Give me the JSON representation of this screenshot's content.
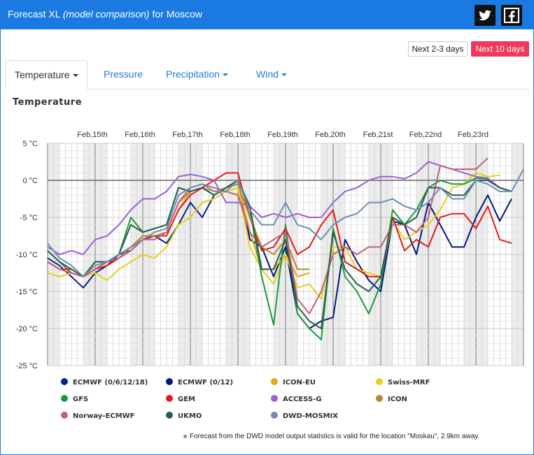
{
  "header": {
    "title_prefix": "Forecast XL",
    "title_italic": "(model comparison)",
    "title_suffix": "for Moscow",
    "twitter_icon": "twitter-icon",
    "facebook_icon": "facebook-icon"
  },
  "range_buttons": {
    "next_2_3": "Next 2-3 days",
    "next_10": "Next 10 days"
  },
  "tabs": {
    "temperature": "Temperature",
    "pressure": "Pressure",
    "precipitation": "Precipitation",
    "wind": "Wind"
  },
  "section_title": "Temperature",
  "footnote": "Forecast from the DWD model output statistics is valid for the location \"Moskau\", 2.9km away.",
  "colors": {
    "header_bg": "#1a7ae2",
    "active_button": "#f0385a",
    "link": "#2a7ad3"
  },
  "chart_data": {
    "type": "line",
    "title": "Temperature",
    "x_unit": "days",
    "x_tick_labels": [
      "Feb,15th",
      "Feb,16th",
      "Feb,17th",
      "Feb,18th",
      "Feb,19th",
      "Feb,20th",
      "Feb,21st",
      "Feb,22nd",
      "Feb,23rd"
    ],
    "x_range_days": [
      14.0,
      24.0
    ],
    "y_unit": "°C",
    "ylim": [
      -25,
      5
    ],
    "y_ticks": [
      5,
      0,
      -5,
      -10,
      -15,
      -20,
      -25
    ],
    "y_tick_labels": [
      "5 °C",
      "0 °C",
      "-5 °C",
      "-10 °C",
      "-15 °C",
      "-20 °C",
      "-25 °C"
    ],
    "grid": true,
    "night_shading": true,
    "legend_position": "bottom",
    "series": [
      {
        "name": "ECMWF (0/6/12/18)",
        "color": "#0b1f8f",
        "x": [
          14.0,
          14.25,
          14.5,
          14.75,
          15.0,
          15.25,
          15.5,
          15.75,
          16.0,
          16.25,
          16.5,
          16.75,
          17.0,
          17.25,
          17.5,
          17.75,
          18.0
        ],
        "y": [
          -10.5,
          -11.5,
          -13,
          -14.5,
          -12.5,
          -11.5,
          -10,
          -9.5,
          -8,
          -7.5,
          -8.5,
          -6,
          -3,
          -5,
          -2,
          -1,
          0
        ]
      },
      {
        "name": "ECMWF (0/12)",
        "color": "#001a7a",
        "x": [
          18.0,
          18.25,
          18.5,
          18.75,
          19.0,
          19.25,
          19.5,
          19.75,
          20.0,
          20.25,
          20.5,
          20.75,
          21.0,
          21.25,
          21.5,
          21.75,
          22.0,
          22.25,
          22.5,
          22.75,
          23.0,
          23.25,
          23.5,
          23.75
        ],
        "y": [
          0,
          -8,
          -9,
          -13,
          -9,
          -18,
          -20,
          -19,
          -18.5,
          -8,
          -11,
          -13.5,
          -15,
          -5.5,
          -6,
          -10,
          -3,
          -6,
          -9,
          -9,
          -5,
          -2,
          -5.5,
          -2.5
        ]
      },
      {
        "name": "ICON-EU",
        "color": "#e8a81c",
        "x": [
          14.0,
          14.25,
          14.5,
          14.75,
          15.0,
          15.25,
          15.5,
          15.75,
          16.0,
          16.25,
          16.5,
          16.75,
          17.0,
          17.25,
          17.5,
          17.75,
          18.0,
          18.25,
          18.5,
          18.75,
          19.0,
          19.25,
          19.5
        ],
        "y": [
          -11,
          -12,
          -12.5,
          -13,
          -12,
          -11.5,
          -10.5,
          -9.5,
          -7.5,
          -7.5,
          -7.5,
          -4,
          -1.5,
          -1,
          -1.5,
          -1,
          -0.5,
          -7,
          -12,
          -12,
          -10,
          -13,
          -12.5
        ]
      },
      {
        "name": "Swiss-MRF",
        "color": "#e6d11a",
        "x": [
          14.0,
          14.25,
          14.5,
          14.75,
          15.0,
          15.25,
          15.5,
          15.75,
          16.0,
          16.25,
          16.5,
          16.75,
          17.0,
          17.25,
          17.5,
          17.75,
          18.0,
          18.25,
          18.5,
          18.75,
          19.0,
          19.25,
          19.5,
          19.75,
          20.0,
          20.25,
          20.5,
          20.75,
          21.0,
          21.25,
          21.5,
          21.75,
          22.0,
          22.25,
          22.5,
          22.75,
          23.0,
          23.25,
          23.5
        ],
        "y": [
          -12.5,
          -13,
          -12.5,
          -13,
          -12.5,
          -13.5,
          -12,
          -11,
          -10,
          -10.5,
          -9,
          -6,
          -5,
          -3,
          -2.5,
          -1.5,
          -1,
          -9,
          -12,
          -14,
          -10,
          -14.5,
          -14,
          -16,
          -9,
          -9,
          -12,
          -12.5,
          -13,
          -5.5,
          -8,
          -7,
          -6,
          -4,
          -1,
          -0.5,
          1,
          0.5,
          0.7
        ]
      },
      {
        "name": "GFS",
        "color": "#1e9a3c",
        "x": [
          14.0,
          14.25,
          14.5,
          14.75,
          15.0,
          15.25,
          15.5,
          15.75,
          16.0,
          16.25,
          16.5,
          16.75,
          17.0,
          17.25,
          17.5,
          17.75,
          18.0,
          18.25,
          18.5,
          18.75,
          19.0,
          19.25,
          19.5,
          19.75,
          20.0,
          20.25,
          20.5,
          20.75,
          21.0,
          21.25,
          21.5,
          21.75,
          22.0,
          22.25,
          22.5,
          22.75,
          23.0,
          23.25,
          23.5,
          23.75
        ],
        "y": [
          -9.5,
          -11,
          -12.5,
          -13,
          -11,
          -11,
          -10,
          -5,
          -7,
          -6.5,
          -6,
          -1,
          -1.5,
          -1,
          -2,
          -1,
          0,
          -4,
          -13,
          -19.5,
          -6,
          -18,
          -20,
          -21.5,
          -6.5,
          -13,
          -15,
          -18,
          -14,
          -4,
          -6,
          -4,
          -1,
          0,
          -0.5,
          -0.5,
          0.3,
          0.2,
          -1,
          -1.5
        ]
      },
      {
        "name": "GEM",
        "color": "#e41b1b",
        "x": [
          14.0,
          14.25,
          14.5,
          14.75,
          15.0,
          15.25,
          15.5,
          15.75,
          16.0,
          16.25,
          16.5,
          16.75,
          17.0,
          17.25,
          17.5,
          17.75,
          18.0,
          18.25,
          18.5,
          18.75,
          19.0,
          19.25,
          19.5,
          19.75,
          20.0,
          20.25,
          20.5,
          20.75,
          21.0,
          21.25,
          21.5,
          21.75,
          22.0,
          22.25,
          22.5,
          22.75,
          23.0,
          23.25,
          23.5,
          23.75
        ],
        "y": [
          -11,
          -12,
          -12,
          -13,
          -12,
          -11.5,
          -10.5,
          -9,
          -8,
          -7.5,
          -7.5,
          -4,
          -2,
          -1,
          0,
          1,
          1,
          -5,
          -9.5,
          -9,
          -6.5,
          -10,
          -9,
          -6,
          -4,
          -11,
          -12,
          -13,
          -13,
          -5,
          -9.5,
          -8,
          -9,
          -5,
          -4.5,
          -4.5,
          -6.5,
          -3.5,
          -8,
          -8.5
        ]
      },
      {
        "name": "ACCESS-G",
        "color": "#9a63cf",
        "x": [
          14.0,
          14.25,
          14.5,
          14.75,
          15.0,
          15.25,
          15.5,
          15.75,
          16.0,
          16.25,
          16.5,
          16.75,
          17.0,
          17.25,
          17.5,
          17.75,
          18.0,
          18.25,
          18.5,
          18.75,
          19.0,
          19.25,
          19.5,
          19.75,
          20.0,
          20.25,
          20.5,
          20.75,
          21.0,
          21.25,
          21.5,
          21.75,
          22.0,
          22.25,
          22.5,
          22.75,
          23.0,
          23.25,
          23.5,
          23.75
        ],
        "y": [
          -9,
          -10,
          -9.5,
          -10,
          -8,
          -7.5,
          -6,
          -4,
          -2.5,
          -2.5,
          -1.5,
          0.5,
          0.8,
          0.5,
          0,
          -3,
          -3,
          -3.5,
          -5,
          -4.5,
          -5,
          -4.5,
          -5,
          -5,
          -3,
          -1.5,
          -1,
          0,
          0.5,
          0.5,
          0.2,
          1,
          2.5,
          2,
          1.5,
          1,
          0.5,
          0.3,
          -1,
          -1.5
        ]
      },
      {
        "name": "ICON",
        "color": "#b48a32",
        "x": [
          14.0,
          14.25,
          14.5,
          14.75,
          15.0,
          15.25,
          15.5,
          15.75,
          16.0,
          16.25,
          16.5,
          16.75,
          17.0,
          17.25,
          17.5,
          17.75,
          18.0,
          18.25,
          18.5,
          18.75,
          19.0,
          19.25,
          19.5
        ],
        "y": [
          -11,
          -12,
          -12.5,
          -13,
          -12,
          -11,
          -10.5,
          -9,
          -7.5,
          -7.5,
          -7,
          -3,
          -1.5,
          -1,
          -2,
          -1,
          -0.5,
          -5,
          -9,
          -10,
          -8,
          -12,
          -12
        ]
      },
      {
        "name": "Norway-ECMWF",
        "color": "#c06080",
        "x": [
          14.0,
          14.25,
          14.5,
          14.75,
          15.0,
          15.25,
          15.5,
          15.75,
          16.0,
          16.25,
          16.5,
          16.75,
          17.0,
          17.25,
          17.5,
          17.75,
          18.0,
          18.25,
          18.5,
          18.75,
          19.0,
          19.25,
          19.5,
          19.75,
          20.0,
          20.25,
          20.5,
          20.75,
          21.0,
          21.25,
          21.5,
          21.75,
          22.0,
          22.25,
          22.5,
          22.75,
          23.0,
          23.25
        ],
        "y": [
          -11,
          -12,
          -12.5,
          -13,
          -12,
          -11,
          -10.5,
          -9.5,
          -8,
          -8,
          -7,
          -3,
          -1,
          -0.5,
          -1,
          -1.5,
          -2,
          -7,
          -9,
          -8,
          -7,
          -16,
          -18,
          -15,
          -10,
          -9,
          -10,
          -9,
          -9,
          -6,
          -6,
          -7,
          -5,
          2,
          1.5,
          1.5,
          1.5,
          3
        ]
      },
      {
        "name": "UKMO",
        "color": "#2c5e4a",
        "x": [
          14.0,
          14.25,
          14.5,
          14.75,
          15.0,
          15.25,
          15.5,
          15.75,
          16.0,
          16.25,
          16.5,
          16.75,
          17.0,
          17.25,
          17.5,
          17.75,
          18.0,
          18.25,
          18.5,
          18.75,
          19.0,
          19.25,
          19.5,
          19.75,
          20.0,
          20.25,
          20.5,
          20.75,
          21.0,
          21.25,
          21.5,
          21.75,
          22.0,
          22.25,
          22.5,
          22.75,
          23.0,
          23.25,
          23.5,
          23.75
        ],
        "y": [
          -9.5,
          -11,
          -12,
          -13,
          -11,
          -11,
          -10,
          -6,
          -7,
          -6.5,
          -6,
          -1,
          -1.5,
          -1,
          -2,
          -1,
          0,
          -3.5,
          -12,
          -12,
          -8,
          -17,
          -19,
          -20,
          -7,
          -12,
          -14,
          -15,
          -13,
          -5,
          -6,
          -5,
          -1,
          -1,
          -2,
          -2,
          0,
          0,
          -1,
          -1.5
        ]
      },
      {
        "name": "DWD-MOSMIX",
        "color": "#6e8db7",
        "x": [
          14.0,
          14.25,
          14.5,
          14.75,
          15.0,
          15.25,
          15.5,
          15.75,
          16.0,
          16.25,
          16.5,
          16.75,
          17.0,
          17.25,
          17.5,
          17.75,
          18.0,
          18.25,
          18.5,
          18.75,
          19.0,
          19.25,
          19.5,
          19.75,
          20.0,
          20.25,
          20.5,
          20.75,
          21.0,
          21.25,
          21.5,
          21.75,
          22.0,
          22.25,
          22.5,
          22.75,
          23.0,
          23.25,
          23.5,
          23.75,
          24.0
        ],
        "y": [
          -8.5,
          -10.5,
          -11.5,
          -13,
          -11.5,
          -11,
          -10,
          -9,
          -8,
          -7,
          -6.5,
          -2,
          -1,
          -0.5,
          -1.5,
          -1.5,
          0,
          -4,
          -6,
          -6,
          -3,
          -6,
          -6.5,
          -8,
          -6,
          -5,
          -4.5,
          -3,
          -3,
          -2.5,
          -3.5,
          -4,
          -3,
          -1,
          -2.5,
          -2.5,
          0,
          -0.5,
          -1.5,
          -1.5,
          1.5
        ]
      }
    ]
  }
}
